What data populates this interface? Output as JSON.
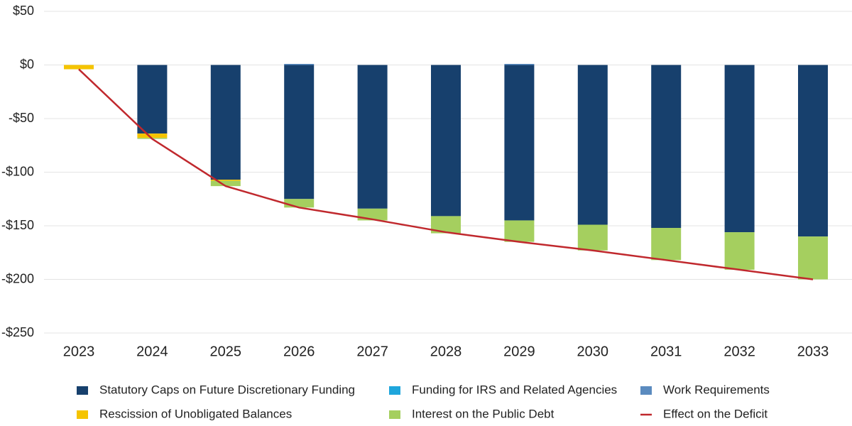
{
  "chart_data": {
    "type": "bar",
    "stacked": true,
    "categories": [
      "2023",
      "2024",
      "2025",
      "2026",
      "2027",
      "2028",
      "2029",
      "2030",
      "2031",
      "2032",
      "2033"
    ],
    "series": [
      {
        "name": "Statutory Caps on Future Discretionary Funding",
        "color": "#17406d",
        "values": [
          0,
          -64,
          -107,
          -125,
          -134,
          -141,
          -145,
          -149,
          -152,
          -156,
          -160
        ]
      },
      {
        "name": "Funding for IRS and Related Agencies",
        "color": "#1fa6dc",
        "values": [
          0,
          0,
          0,
          0,
          0,
          0,
          0,
          0,
          0,
          0,
          0
        ]
      },
      {
        "name": "Work Requirements",
        "color": "#5b8bbf",
        "values": [
          0,
          0,
          0,
          1,
          0,
          0,
          1,
          0,
          0,
          0,
          0
        ]
      },
      {
        "name": "Rescission of Unobligated Balances",
        "color": "#f5c400",
        "values": [
          -4,
          -4,
          -1,
          0,
          0,
          0,
          0,
          0,
          0,
          0,
          0
        ]
      },
      {
        "name": "Interest on the Public Debt",
        "color": "#a5cf5f",
        "values": [
          0,
          -1,
          -5,
          -8,
          -11,
          -16,
          -20,
          -24,
          -30,
          -35,
          -40
        ]
      },
      {
        "name": "Effect on the Deficit",
        "color": "#c0282d",
        "type": "line",
        "values": [
          -4,
          -69,
          -113,
          -133,
          -144,
          -156,
          -165,
          -173,
          -182,
          -191,
          -200
        ]
      }
    ],
    "ylim": [
      -250,
      50
    ],
    "yticks": [
      {
        "value": -250,
        "label": "-$250"
      },
      {
        "value": -200,
        "label": "-$200"
      },
      {
        "value": -150,
        "label": "-$150"
      },
      {
        "value": -100,
        "label": "-$100"
      },
      {
        "value": -50,
        "label": "-$50"
      },
      {
        "value": 0,
        "label": "$0"
      },
      {
        "value": 50,
        "label": "$50"
      }
    ],
    "grid": true
  }
}
